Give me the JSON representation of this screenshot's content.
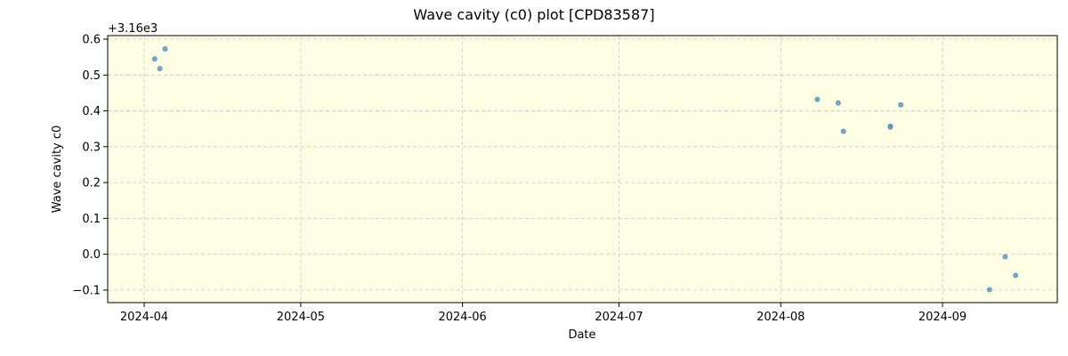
{
  "chart_data": {
    "type": "scatter",
    "title": "Wave cavity (c0) plot [CPD83587]",
    "xlabel": "Date",
    "ylabel": "Wave cavity c0",
    "offset_label": "+3.16e3",
    "x_ticks": [
      "2024-04-01",
      "2024-05-01",
      "2024-06-01",
      "2024-07-01",
      "2024-08-01",
      "2024-09-01"
    ],
    "x_tick_labels": [
      "2024-04",
      "2024-05",
      "2024-06",
      "2024-07",
      "2024-08",
      "2024-09"
    ],
    "y_ticks": [
      0.6,
      0.5,
      0.4,
      0.3,
      0.2,
      0.1,
      0.0,
      -0.1
    ],
    "y_tick_labels": [
      "0.6",
      "0.5",
      "0.4",
      "0.3",
      "0.2",
      "0.1",
      "0.0",
      "−0.1"
    ],
    "xlim": [
      "2024-03-25",
      "2024-09-23"
    ],
    "ylim": [
      -0.135,
      0.61
    ],
    "grid": true,
    "background_color": "#fdfde3",
    "point_color": "#5b9bc8",
    "points": [
      {
        "x": "2024-04-03",
        "y": 0.545
      },
      {
        "x": "2024-04-04",
        "y": 0.518
      },
      {
        "x": "2024-04-05",
        "y": 0.573
      },
      {
        "x": "2024-08-08",
        "y": 0.432
      },
      {
        "x": "2024-08-12",
        "y": 0.422
      },
      {
        "x": "2024-08-13",
        "y": 0.343
      },
      {
        "x": "2024-08-22",
        "y": 0.357
      },
      {
        "x": "2024-08-22",
        "y": 0.355
      },
      {
        "x": "2024-08-24",
        "y": 0.417
      },
      {
        "x": "2024-09-10",
        "y": -0.099
      },
      {
        "x": "2024-09-13",
        "y": -0.007
      },
      {
        "x": "2024-09-15",
        "y": -0.059
      }
    ]
  }
}
